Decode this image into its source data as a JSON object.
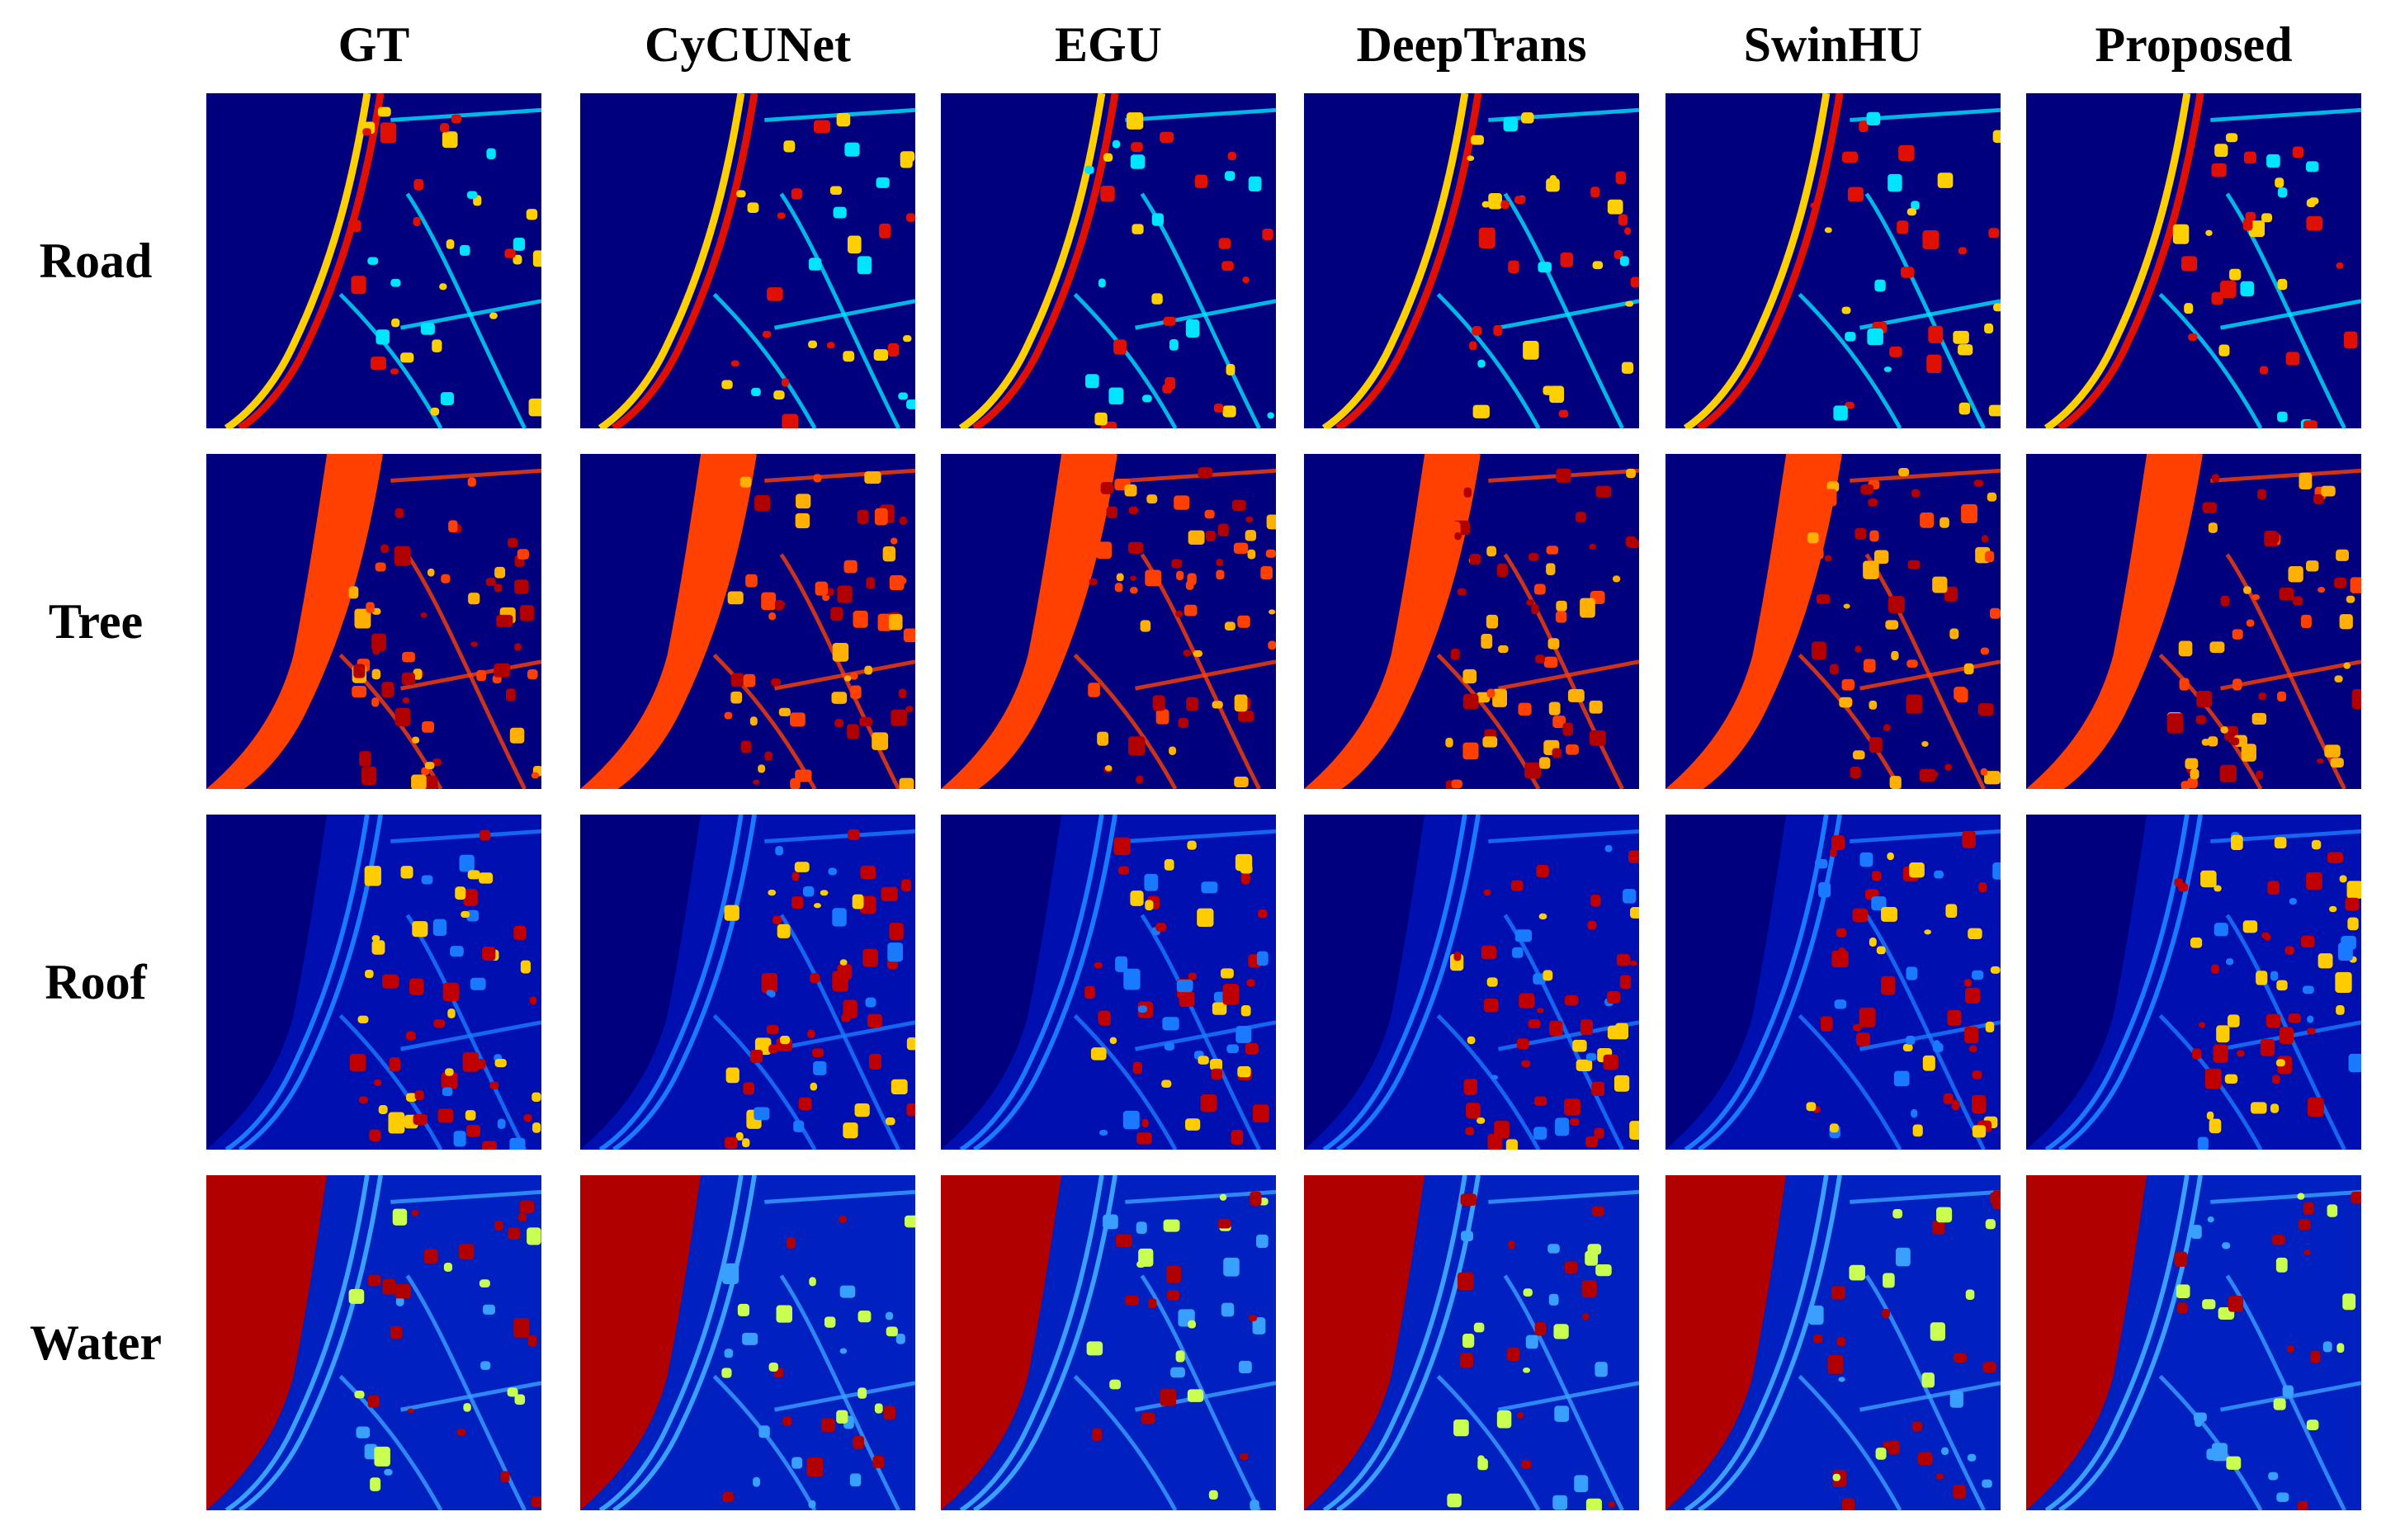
{
  "figure": {
    "columns": [
      "GT",
      "CyCUNet",
      "EGU",
      "DeepTrans",
      "SwinHU",
      "Proposed"
    ],
    "rows": [
      "Road",
      "Tree",
      "Roof",
      "Water"
    ]
  },
  "colormap": {
    "name": "jet",
    "stops": [
      "#00007f",
      "#0000ff",
      "#007fff",
      "#00ffff",
      "#7fff7f",
      "#ffff00",
      "#ff7f00",
      "#ff0000",
      "#7f0000"
    ]
  },
  "panel_style": {
    "Road": {
      "background": "#00007f",
      "feature": "#00e5ff",
      "accent": "#ffd000",
      "hot": "#e01000"
    },
    "Tree": {
      "background": "#00007f",
      "feature": "#ff4000",
      "accent": "#ffb000",
      "hot": "#b00000"
    },
    "Roof": {
      "background": "#0010b0",
      "feature": "#1a7aff",
      "accent": "#ffcc00",
      "hot": "#c00000"
    },
    "Water": {
      "background": "#0020c0",
      "feature": "#3aa0ff",
      "accent": "#c8ff50",
      "hot": "#b00000"
    }
  }
}
